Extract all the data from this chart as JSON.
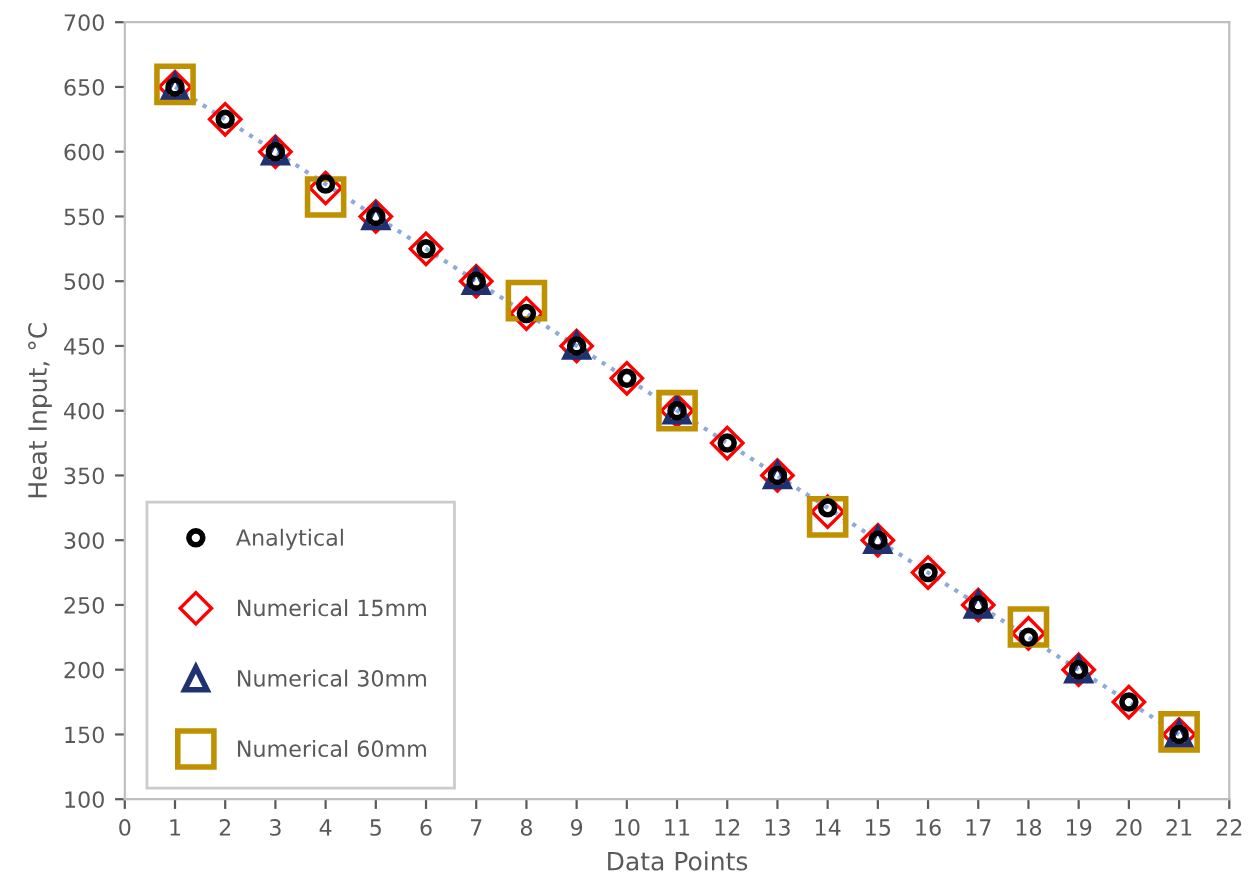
{
  "chart_data": {
    "type": "scatter",
    "xlabel": "Data Points",
    "ylabel": "Heat Input, °C",
    "xlim": [
      0,
      22
    ],
    "xticks": [
      0,
      1,
      2,
      3,
      4,
      5,
      6,
      7,
      8,
      9,
      10,
      11,
      12,
      13,
      14,
      15,
      16,
      17,
      18,
      19,
      20,
      21,
      22
    ],
    "ylim": [
      100,
      700
    ],
    "yticks": [
      100,
      150,
      200,
      250,
      300,
      350,
      400,
      450,
      500,
      550,
      600,
      650,
      700
    ],
    "grid": false,
    "legend": "bottom left",
    "series": [
      {
        "type": "line",
        "line_style": "dotted",
        "marker": "none",
        "color": "#8eaadb",
        "x": [
          1,
          21
        ],
        "values": [
          650,
          150
        ]
      },
      {
        "name": "Analytical",
        "marker": "circle",
        "color": "#000000",
        "x": [
          1,
          2,
          3,
          4,
          5,
          6,
          7,
          8,
          9,
          10,
          11,
          12,
          13,
          14,
          15,
          16,
          17,
          18,
          19,
          20,
          21
        ],
        "values": [
          650,
          625,
          600,
          575,
          550,
          525,
          500,
          475,
          450,
          425,
          400,
          375,
          350,
          325,
          300,
          275,
          250,
          225,
          200,
          175,
          150
        ]
      },
      {
        "name": "Numerical 15mm",
        "marker": "diamond",
        "color": "#ff0000",
        "x": [
          1,
          2,
          3,
          4,
          5,
          6,
          7,
          8,
          9,
          10,
          11,
          12,
          13,
          14,
          15,
          16,
          17,
          18,
          19,
          20,
          21
        ],
        "values": [
          650,
          625,
          600,
          572,
          550,
          525,
          500,
          475,
          450,
          425,
          400,
          375,
          350,
          322,
          300,
          275,
          250,
          228,
          200,
          175,
          150
        ]
      },
      {
        "name": "Numerical 30mm",
        "marker": "triangle",
        "color": "#1f3170",
        "x": [
          1,
          3,
          5,
          7,
          9,
          11,
          13,
          15,
          17,
          19,
          21
        ],
        "values": [
          650,
          600,
          550,
          500,
          450,
          400,
          350,
          300,
          250,
          200,
          150
        ]
      },
      {
        "name": "Numerical 60mm",
        "marker": "square",
        "color": "#bf9000",
        "x": [
          1,
          4,
          8,
          11,
          14,
          18,
          21
        ],
        "values": [
          652,
          565,
          485,
          400,
          318,
          233,
          152
        ]
      }
    ]
  }
}
